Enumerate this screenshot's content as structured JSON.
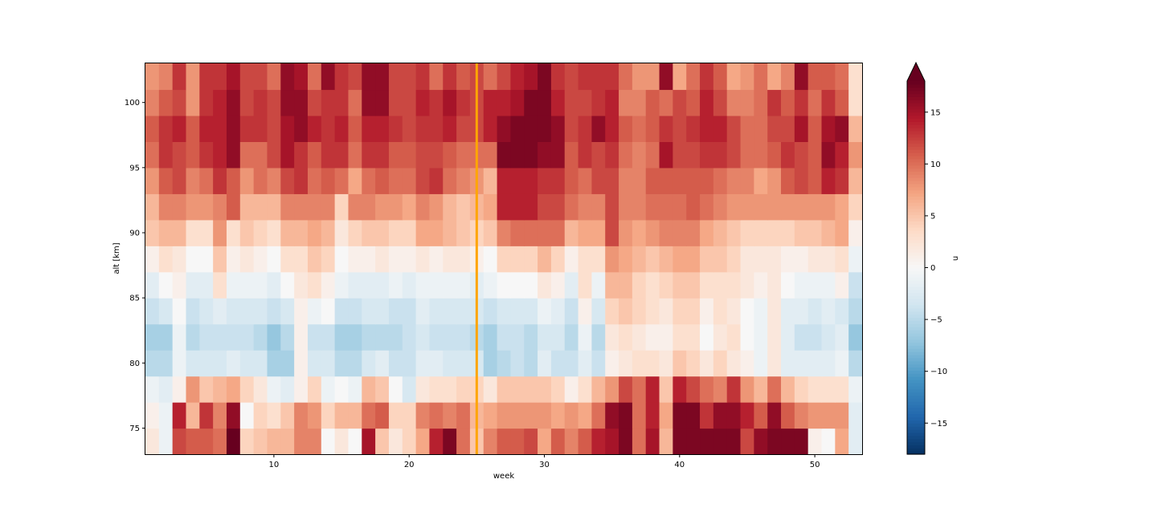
{
  "chart_data": {
    "type": "heatmap",
    "xlabel": "week",
    "ylabel": "alt [km]",
    "colorbar_label": "u",
    "colormap": "RdBu_r",
    "colorbar_extend": "max",
    "vmin": -18,
    "vmax": 18,
    "xlim": [
      0.5,
      53.5
    ],
    "ylim": [
      73,
      103
    ],
    "x_ticks": [
      10,
      20,
      30,
      40,
      50
    ],
    "y_ticks": [
      75,
      80,
      85,
      90,
      95,
      100
    ],
    "colorbar_ticks": [
      -15,
      -10,
      -5,
      0,
      5,
      10,
      15
    ],
    "altitudes": [
      74,
      76,
      78,
      80,
      82,
      84,
      86,
      88,
      90,
      92,
      94,
      96,
      98,
      100,
      102
    ],
    "weeks_first": 1,
    "weeks_last": 53,
    "grid": false,
    "reference_line": {
      "x": 25,
      "color": "#ffa500"
    },
    "rows": [
      [
        2,
        -1,
        12,
        11,
        11,
        10,
        18,
        4,
        5,
        6,
        6,
        9,
        9,
        0,
        2,
        0,
        15,
        5,
        2,
        4,
        7,
        14,
        17,
        10,
        5,
        9,
        11,
        11,
        12,
        7,
        11,
        9,
        11,
        14,
        15,
        17,
        10,
        15,
        6,
        17,
        17,
        17,
        17,
        17,
        12,
        16,
        17,
        17,
        17,
        1,
        0,
        7,
        -2
      ],
      [
        1,
        -1,
        14,
        6,
        13,
        9,
        16,
        0,
        4,
        3,
        5,
        9,
        8,
        4,
        6,
        6,
        10,
        11,
        4,
        4,
        9,
        10,
        9,
        10,
        6,
        7,
        8,
        8,
        8,
        8,
        7,
        8,
        7,
        10,
        16,
        17,
        10,
        14,
        7,
        17,
        17,
        13,
        16,
        16,
        14,
        11,
        16,
        11,
        9,
        8,
        8,
        8,
        -2
      ],
      [
        -1,
        -2,
        1,
        8,
        5,
        6,
        7,
        4,
        2,
        -1,
        -2,
        1,
        4,
        -1,
        0,
        -1,
        6,
        5,
        0,
        -3,
        2,
        3,
        3,
        4,
        4,
        2,
        5,
        5,
        5,
        5,
        4,
        1,
        3,
        6,
        8,
        12,
        10,
        14,
        5,
        14,
        12,
        10,
        9,
        13,
        8,
        6,
        10,
        6,
        4,
        3,
        3,
        3,
        -1
      ],
      [
        -5,
        -5,
        -1,
        -3,
        -3,
        -3,
        -2,
        -3,
        -3,
        -6,
        -6,
        1,
        -3,
        -3,
        -5,
        -5,
        -3,
        -2,
        -4,
        -4,
        -2,
        -2,
        -3,
        -3,
        -3,
        -6,
        -5,
        -4,
        -5,
        -2,
        -4,
        -4,
        -2,
        -4,
        1,
        2,
        3,
        3,
        2,
        5,
        4,
        2,
        4,
        2,
        1,
        -1,
        2,
        -2,
        -2,
        -2,
        -2,
        -1,
        -5
      ],
      [
        -6,
        -6,
        -1,
        -5,
        -4,
        -4,
        -4,
        -4,
        -5,
        -7,
        -5,
        1,
        -4,
        -4,
        -6,
        -6,
        -5,
        -5,
        -5,
        -4,
        -3,
        -4,
        -4,
        -4,
        -5,
        -6,
        -4,
        -4,
        -5,
        -3,
        -3,
        -5,
        -1,
        -5,
        2,
        3,
        2,
        1,
        1,
        3,
        3,
        0,
        2,
        3,
        0,
        -1,
        2,
        -2,
        -4,
        -4,
        -3,
        -2,
        -7
      ],
      [
        -4,
        -3,
        0,
        -4,
        -3,
        -2,
        -3,
        -3,
        -3,
        -4,
        -3,
        1,
        -1,
        0,
        -4,
        -4,
        -3,
        -3,
        -4,
        -4,
        -2,
        -3,
        -3,
        -3,
        -3,
        -4,
        -3,
        -3,
        -3,
        -1,
        -2,
        -4,
        1,
        -3,
        4,
        5,
        4,
        3,
        2,
        4,
        4,
        1,
        3,
        2,
        0,
        -1,
        2,
        -2,
        -2,
        -3,
        -2,
        -3,
        -5
      ],
      [
        -2,
        0,
        1,
        -2,
        -2,
        3,
        -1,
        -1,
        -1,
        -2,
        0,
        2,
        3,
        1,
        -1,
        -2,
        -2,
        -2,
        -1,
        -2,
        -1,
        -1,
        -1,
        -1,
        -2,
        -1,
        0,
        0,
        0,
        2,
        1,
        -2,
        3,
        -1,
        6,
        6,
        4,
        3,
        4,
        5,
        5,
        3,
        3,
        3,
        2,
        1,
        2,
        0,
        -1,
        -1,
        -1,
        1,
        -4
      ],
      [
        1,
        3,
        2,
        0,
        0,
        5,
        1,
        2,
        1,
        0,
        3,
        3,
        5,
        4,
        0,
        1,
        1,
        2,
        1,
        1,
        2,
        1,
        2,
        2,
        1,
        0,
        4,
        4,
        4,
        6,
        4,
        1,
        3,
        3,
        8,
        7,
        6,
        5,
        6,
        7,
        7,
        5,
        5,
        4,
        2,
        2,
        2,
        1,
        1,
        2,
        2,
        3,
        -1
      ],
      [
        5,
        6,
        6,
        3,
        3,
        8,
        3,
        5,
        4,
        3,
        6,
        6,
        7,
        6,
        2,
        4,
        5,
        5,
        4,
        4,
        7,
        7,
        6,
        5,
        4,
        5,
        9,
        10,
        10,
        10,
        10,
        6,
        7,
        7,
        12,
        8,
        7,
        8,
        9,
        9,
        9,
        7,
        6,
        5,
        4,
        4,
        4,
        4,
        5,
        5,
        6,
        7,
        1
      ],
      [
        6,
        9,
        9,
        8,
        8,
        9,
        11,
        6,
        6,
        6,
        9,
        9,
        9,
        9,
        4,
        9,
        9,
        8,
        8,
        7,
        9,
        8,
        6,
        5,
        6,
        7,
        14,
        14,
        14,
        12,
        12,
        10,
        9,
        9,
        12,
        9,
        9,
        10,
        10,
        10,
        11,
        10,
        9,
        8,
        8,
        8,
        8,
        8,
        8,
        8,
        8,
        7,
        4
      ],
      [
        8,
        11,
        12,
        9,
        10,
        13,
        11,
        8,
        10,
        9,
        12,
        13,
        10,
        11,
        10,
        7,
        10,
        11,
        10,
        10,
        12,
        13,
        10,
        9,
        8,
        6,
        14,
        14,
        14,
        13,
        13,
        11,
        10,
        12,
        12,
        9,
        9,
        11,
        11,
        11,
        11,
        11,
        10,
        9,
        9,
        7,
        8,
        11,
        12,
        11,
        14,
        13,
        6
      ],
      [
        10,
        13,
        12,
        11,
        13,
        14,
        16,
        10,
        10,
        12,
        15,
        13,
        11,
        13,
        13,
        10,
        13,
        13,
        11,
        11,
        12,
        12,
        11,
        10,
        10,
        10,
        17,
        17,
        17,
        16,
        16,
        11,
        13,
        12,
        13,
        10,
        9,
        10,
        15,
        12,
        12,
        13,
        13,
        12,
        10,
        10,
        11,
        13,
        12,
        11,
        16,
        14,
        8
      ],
      [
        11,
        13,
        14,
        11,
        14,
        14,
        16,
        13,
        13,
        12,
        15,
        16,
        14,
        13,
        14,
        11,
        14,
        14,
        13,
        12,
        13,
        13,
        14,
        12,
        12,
        14,
        16,
        17,
        17,
        17,
        16,
        12,
        13,
        16,
        14,
        11,
        10,
        11,
        13,
        12,
        13,
        14,
        14,
        12,
        10,
        10,
        12,
        12,
        15,
        11,
        15,
        16,
        6
      ],
      [
        9,
        11,
        12,
        8,
        13,
        14,
        16,
        12,
        13,
        12,
        16,
        16,
        12,
        13,
        13,
        10,
        16,
        16,
        12,
        12,
        14,
        13,
        15,
        13,
        12,
        14,
        14,
        15,
        17,
        17,
        14,
        12,
        12,
        13,
        14,
        9,
        9,
        11,
        10,
        12,
        11,
        14,
        12,
        9,
        9,
        10,
        13,
        11,
        13,
        10,
        13,
        11,
        3
      ],
      [
        8,
        9,
        13,
        8,
        13,
        13,
        15,
        12,
        12,
        10,
        16,
        15,
        10,
        16,
        13,
        12,
        16,
        16,
        12,
        12,
        13,
        10,
        13,
        11,
        12,
        10,
        12,
        14,
        15,
        17,
        13,
        12,
        13,
        13,
        13,
        10,
        8,
        8,
        16,
        7,
        10,
        13,
        11,
        7,
        8,
        10,
        7,
        9,
        16,
        11,
        11,
        10,
        3
      ]
    ]
  }
}
